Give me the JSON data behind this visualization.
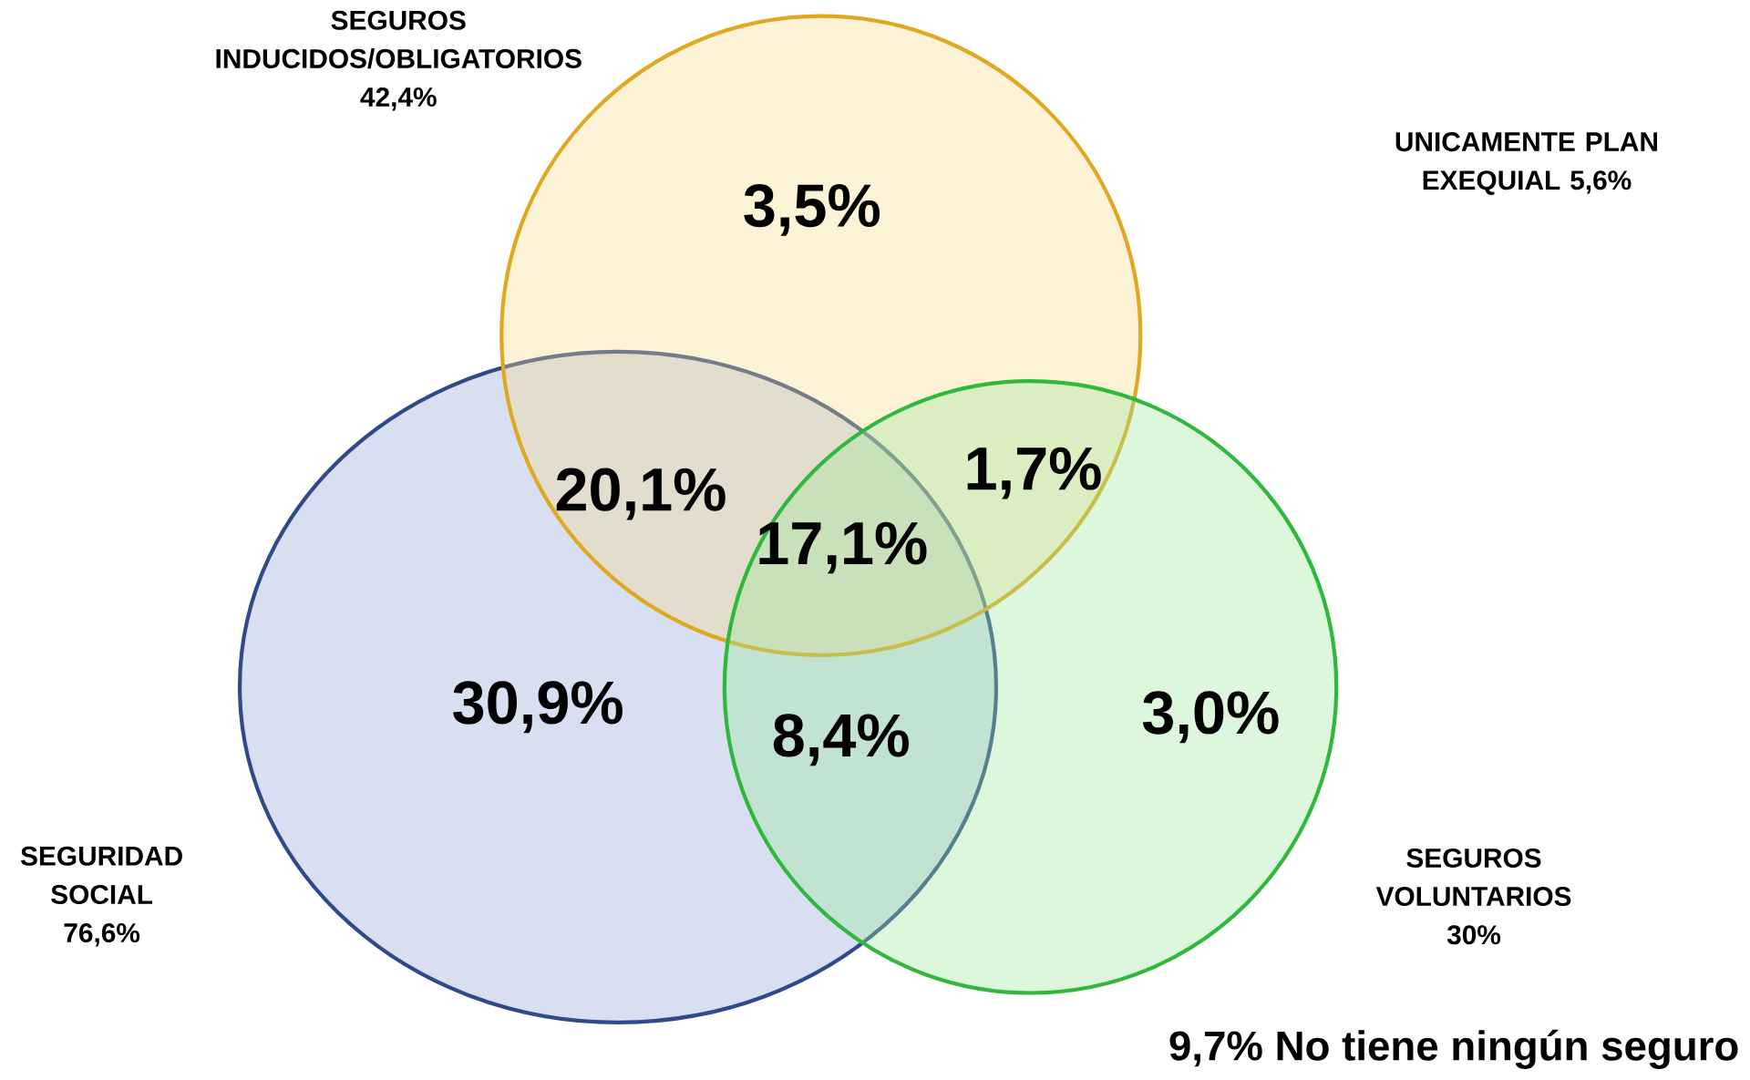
{
  "chart_data": {
    "type": "other",
    "categories": [
      "SEGURIDAD SOCIAL",
      "SEGUROS INDUCIDOS/OBLIGATORIOS",
      "SEGUROS VOLUNTARIOS"
    ],
    "values": [
      76.6,
      42.4,
      30
    ],
    "value_labels": [
      "76,6%",
      "42,4%",
      "30%"
    ],
    "colors": [
      "#8fa4d4",
      "#f7d98a",
      "#9be89b"
    ],
    "annotations": [
      "30,9%",
      "3,5%",
      "3,0%",
      "20,1%",
      "8,4%",
      "1,7%",
      "17,1%",
      "UNICAMENTE PLAN EXEQUIAL 5,6%",
      "9,7% No tiene ningún seguro"
    ]
  }
}
